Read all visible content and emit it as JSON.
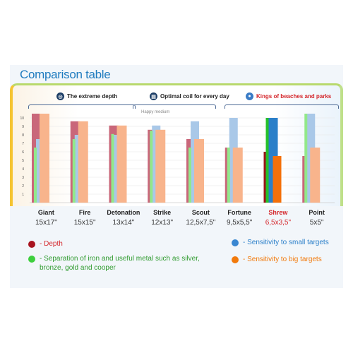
{
  "title": "Comparison table",
  "groups": [
    {
      "label": "The extreme depth",
      "icon": "target-icon",
      "color": "#222222"
    },
    {
      "label": "Optimal coil for every day",
      "icon": "coil-icon",
      "color": "#222222"
    },
    {
      "label": "Kings of beaches and parks",
      "icon": "globe-icon",
      "color": "#d4252a"
    }
  ],
  "annotation": "Happy medium",
  "categories": [
    {
      "name": "Giant",
      "size": "15x17\""
    },
    {
      "name": "Fire",
      "size": "15x15\""
    },
    {
      "name": "Detonation",
      "size": "13x14\""
    },
    {
      "name": "Strike",
      "size": "12x13\""
    },
    {
      "name": "Scout",
      "size": "12,5x7,5\""
    },
    {
      "name": "Fortune",
      "size": "9,5x5,5\""
    },
    {
      "name": "Shrew",
      "size": "6,5x3,5\""
    },
    {
      "name": "Point",
      "size": "5x5\""
    }
  ],
  "highlight_category": "Shrew",
  "legend": [
    {
      "label": "- Depth",
      "color": "#a8141f"
    },
    {
      "label": "- Separation of iron and useful metal such as silver, bronze, gold and cooper",
      "color": "#3ecf3e"
    },
    {
      "label": "- Sensitivity to small targets",
      "color": "#3a87d1"
    },
    {
      "label": "- Sensitivity to big targets",
      "color": "#f27a0c"
    }
  ],
  "colors": {
    "depth": "#c9677a",
    "separation": "#92e88a",
    "small": "#a9c8e8",
    "big": "#f8b48c",
    "depth_hl": "#9a1219",
    "separation_hl": "#25c12a",
    "small_hl": "#2b7fc9",
    "big_hl": "#f4700a",
    "title": "#1f7bbf"
  },
  "chart_data": {
    "type": "bar",
    "title": "Comparison table",
    "categories": [
      "Giant",
      "Fire",
      "Detonation",
      "Strike",
      "Scout",
      "Fortune",
      "Shrew",
      "Point"
    ],
    "yticks": [
      1,
      2,
      3,
      4,
      5,
      6,
      7,
      8,
      9,
      10
    ],
    "ylim": [
      0,
      10.6
    ],
    "grid": true,
    "series": [
      {
        "name": "Depth",
        "values": [
          10.5,
          9.6,
          9.1,
          8.6,
          7.5,
          6.5,
          6.0,
          5.5
        ]
      },
      {
        "name": "Separation of iron and useful metal",
        "values": [
          6.5,
          7.5,
          8.1,
          8.5,
          6.5,
          6.5,
          10.0,
          10.5
        ]
      },
      {
        "name": "Sensitivity to small targets",
        "values": [
          7.5,
          8.0,
          8.0,
          9.1,
          9.6,
          10.0,
          10.0,
          10.5
        ]
      },
      {
        "name": "Sensitivity to big targets",
        "values": [
          10.5,
          9.6,
          9.1,
          8.6,
          7.5,
          6.5,
          5.5,
          6.5
        ]
      }
    ]
  }
}
